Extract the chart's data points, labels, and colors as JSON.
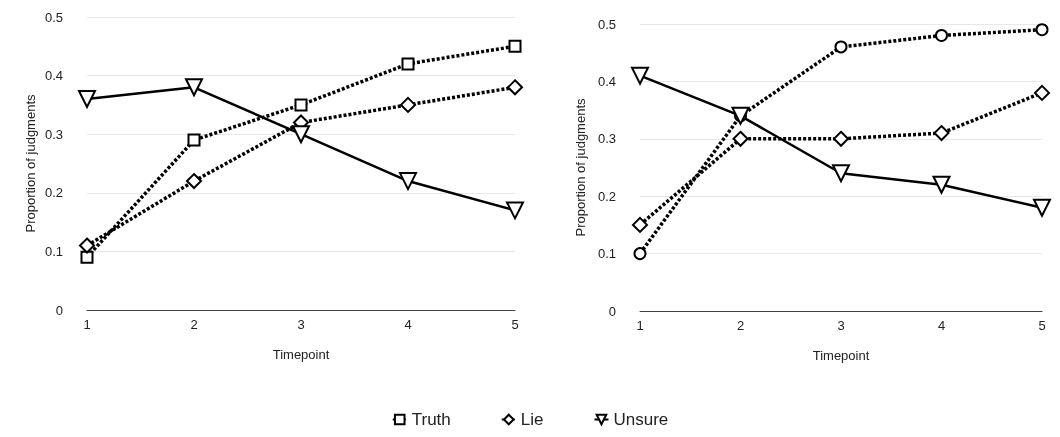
{
  "chart_data": [
    {
      "type": "line",
      "xlabel": "Timepoint",
      "ylabel": "Proportion of judgments",
      "categories": [
        "1",
        "2",
        "3",
        "4",
        "5"
      ],
      "ylim": [
        0,
        0.5
      ],
      "yticks": [
        0,
        0.1,
        0.2,
        0.3,
        0.4,
        0.5
      ],
      "grid": "y",
      "legend": "bottom",
      "series": [
        {
          "name": "Truth",
          "color": "#000000",
          "marker": "square",
          "line_style": "dashed",
          "values": [
            0.09,
            0.29,
            0.35,
            0.42,
            0.45
          ]
        },
        {
          "name": "Lie",
          "color": "#000000",
          "marker": "diamond",
          "line_style": "dashed",
          "values": [
            0.11,
            0.22,
            0.32,
            0.35,
            0.38
          ]
        },
        {
          "name": "Unsure",
          "color": "#000000",
          "marker": "triangle",
          "line_style": "solid",
          "values": [
            0.36,
            0.38,
            0.3,
            0.22,
            0.17
          ]
        }
      ]
    },
    {
      "type": "line",
      "xlabel": "Timepoint",
      "ylabel": "Proportion of judgments",
      "categories": [
        "1",
        "2",
        "3",
        "4",
        "5"
      ],
      "ylim": [
        0,
        0.5
      ],
      "yticks": [
        0,
        0.1,
        0.2,
        0.3,
        0.4,
        0.5
      ],
      "grid": "y",
      "series": [
        {
          "color": "#000000",
          "marker": "circle",
          "line_style": "dashed",
          "values": [
            0.1,
            0.34,
            0.46,
            0.48,
            0.49
          ]
        },
        {
          "color": "#000000",
          "marker": "diamond",
          "line_style": "dashed",
          "values": [
            0.15,
            0.3,
            0.3,
            0.31,
            0.38
          ]
        },
        {
          "color": "#000000",
          "marker": "triangle",
          "line_style": "solid",
          "values": [
            0.41,
            0.34,
            0.24,
            0.22,
            0.18
          ]
        }
      ]
    }
  ]
}
